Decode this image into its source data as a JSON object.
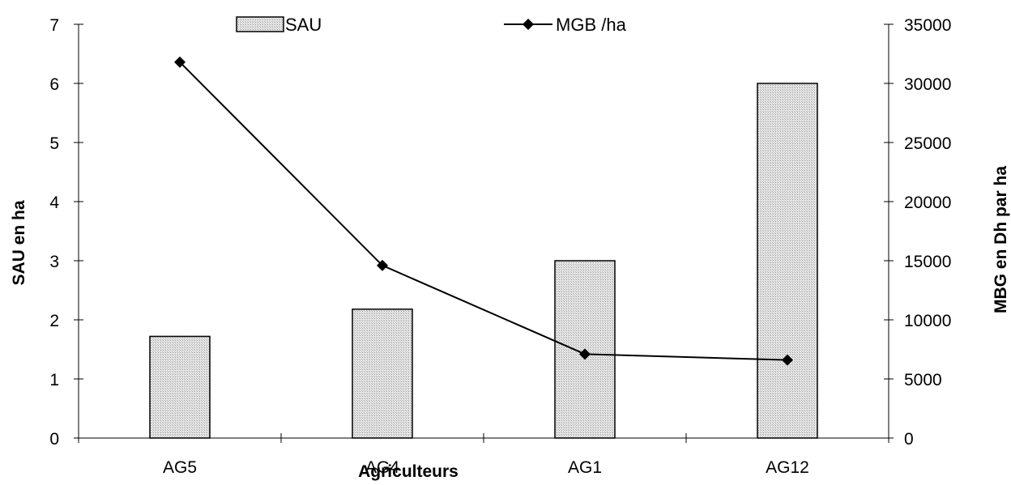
{
  "chart_data": {
    "type": "bar",
    "categories": [
      "AG5",
      "AG4",
      "AG1",
      "AG12"
    ],
    "series": [
      {
        "name": "SAU",
        "type": "bar",
        "axis": "left",
        "values": [
          1.72,
          2.18,
          3.0,
          6.0
        ]
      },
      {
        "name": "MGB /ha",
        "type": "line",
        "axis": "right",
        "values": [
          31800,
          14600,
          7100,
          6600
        ]
      }
    ],
    "title": "",
    "xlabel": "Agriculteurs",
    "ylabel": "SAU en ha",
    "y2label": "MBG en Dh par ha",
    "ylim": [
      0,
      7
    ],
    "y2lim": [
      0,
      35000
    ],
    "yticks": [
      "0",
      "1",
      "2",
      "3",
      "4",
      "5",
      "6",
      "7"
    ],
    "y2ticks": [
      "0",
      "5000",
      "10000",
      "15000",
      "20000",
      "25000",
      "30000",
      "35000"
    ],
    "grid": false,
    "legend": "top",
    "colors": {
      "bar_fill": "#dcdcdc",
      "line": "#000000"
    }
  }
}
